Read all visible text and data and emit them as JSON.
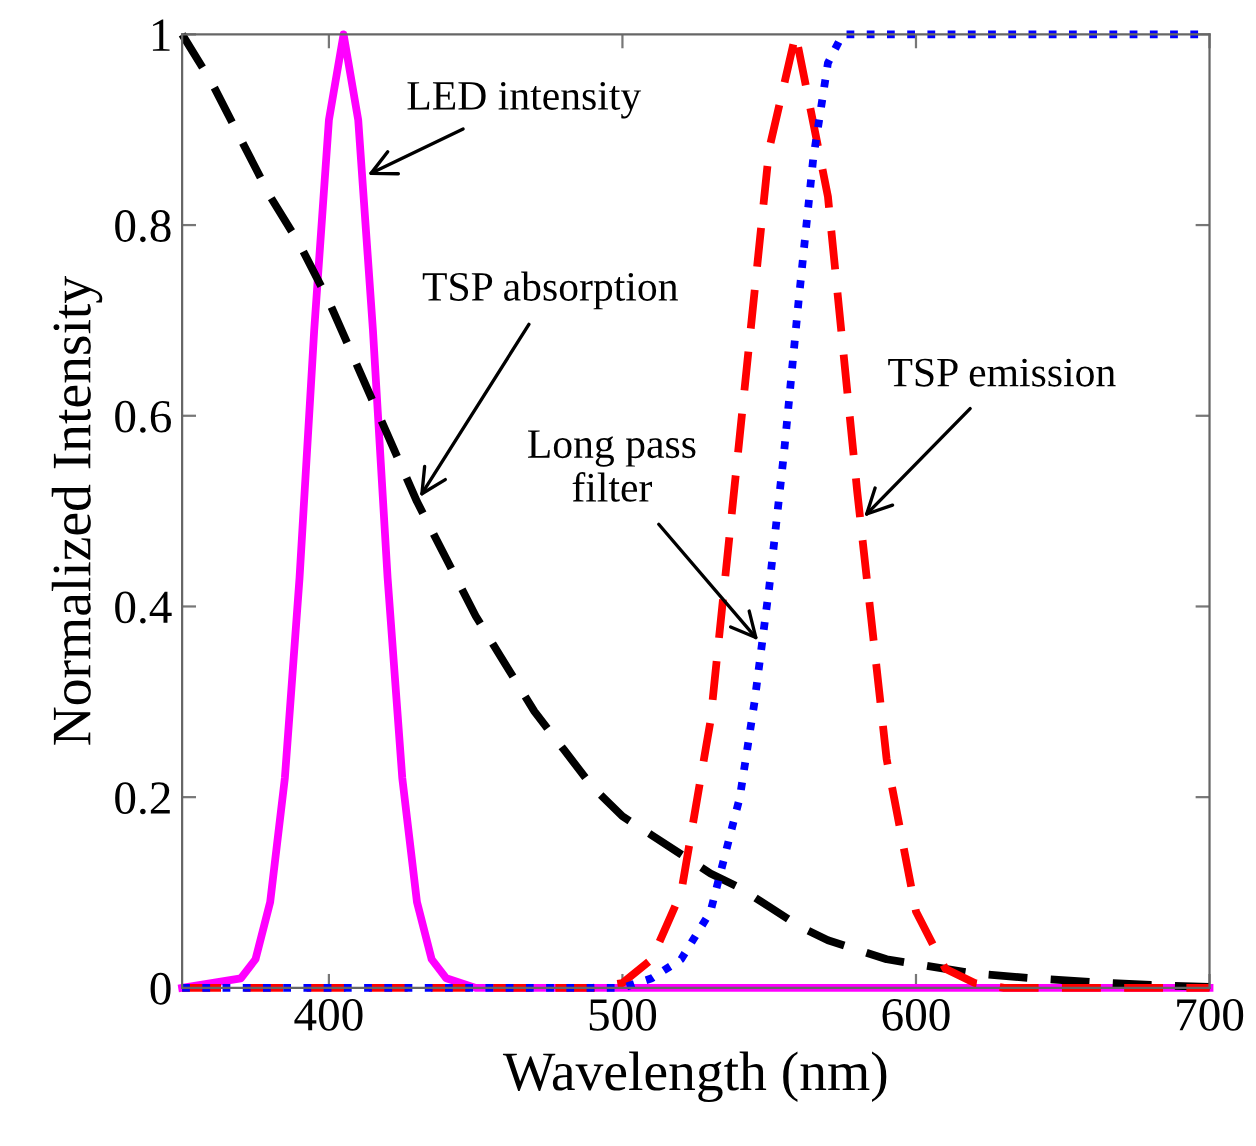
{
  "chart_data": {
    "type": "line",
    "xlabel": "Wavelength (nm)",
    "ylabel": "Normalized Intensity",
    "xlim": [
      350,
      700
    ],
    "ylim": [
      0,
      1
    ],
    "xticks": [
      400,
      500,
      600,
      700
    ],
    "yticks": [
      0,
      0.2,
      0.4,
      0.6,
      0.8,
      1
    ],
    "grid": false,
    "legend": false,
    "marker": "none",
    "series": [
      {
        "color": "#ff00ff",
        "line_style": "solid",
        "x": [
          350,
          370,
          375,
          380,
          385,
          390,
          395,
          400,
          405,
          410,
          415,
          420,
          425,
          430,
          435,
          440,
          450,
          700
        ],
        "values": [
          0,
          0.01,
          0.03,
          0.09,
          0.22,
          0.43,
          0.69,
          0.91,
          1.0,
          0.91,
          0.69,
          0.43,
          0.22,
          0.09,
          0.03,
          0.01,
          0,
          0
        ]
      },
      {
        "color": "#000000",
        "line_style": "dashed",
        "x": [
          350,
          360,
          370,
          380,
          390,
          400,
          410,
          420,
          430,
          440,
          450,
          460,
          470,
          480,
          490,
          500,
          510,
          520,
          530,
          540,
          550,
          560,
          570,
          580,
          590,
          600,
          620,
          640,
          660,
          680,
          700
        ],
        "values": [
          1.0,
          0.95,
          0.89,
          0.83,
          0.78,
          0.72,
          0.65,
          0.58,
          0.51,
          0.45,
          0.39,
          0.34,
          0.29,
          0.25,
          0.21,
          0.18,
          0.16,
          0.14,
          0.12,
          0.105,
          0.085,
          0.065,
          0.05,
          0.04,
          0.03,
          0.025,
          0.015,
          0.01,
          0.006,
          0.003,
          0.001
        ]
      },
      {
        "color": "#ff0000",
        "line_style": "dashed",
        "x": [
          350,
          490,
          500,
          510,
          520,
          530,
          540,
          550,
          559,
          570,
          580,
          590,
          600,
          610,
          620,
          630,
          700
        ],
        "values": [
          0,
          0,
          0.005,
          0.03,
          0.1,
          0.28,
          0.58,
          0.88,
          1.0,
          0.83,
          0.52,
          0.24,
          0.08,
          0.02,
          0.005,
          0,
          0
        ]
      },
      {
        "color": "#0000ff",
        "line_style": "dotted",
        "x": [
          350,
          500,
          510,
          520,
          530,
          540,
          545,
          550,
          555,
          560,
          565,
          570,
          575,
          700
        ],
        "values": [
          0,
          0,
          0.01,
          0.03,
          0.08,
          0.2,
          0.3,
          0.42,
          0.56,
          0.72,
          0.87,
          0.97,
          1.0,
          1.0
        ]
      }
    ],
    "annotations": [
      {
        "text": "LED intensity",
        "x": 411.5,
        "y": 0.85
      },
      {
        "text": "TSP absorption",
        "x": 430,
        "y": 0.51
      },
      {
        "text": "Long pass\nfilter",
        "x": 547.5,
        "y": 0.36
      },
      {
        "text": "TSP emission",
        "x": 581,
        "y": 0.49
      }
    ]
  }
}
